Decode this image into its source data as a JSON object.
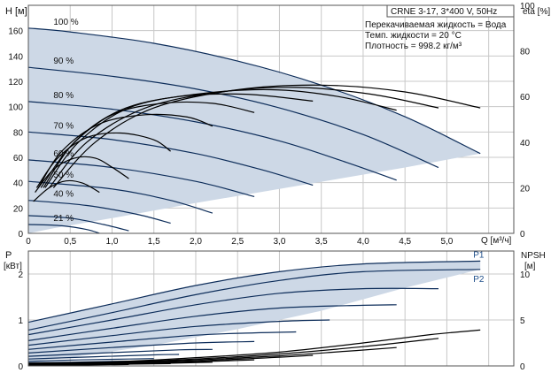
{
  "header": {
    "model": "CRNE 3-17, 3*400 V, 50Hz",
    "liquid": "Перекачиваемая жидкость = Вода",
    "temp": "Темп. жидкости = 20 °C",
    "density": "Плотность = 998.2 кг/м³"
  },
  "colors": {
    "region": "#cdd8e6",
    "curve": "#0d2d5a",
    "eta": "#000000",
    "grid": "#c8c8c8"
  },
  "chart_data": [
    {
      "type": "line",
      "title": "",
      "xlabel": "Q [м³/ч]",
      "ylabel": "H [м]",
      "y2label": "eta [%]",
      "x_ticks": [
        "0",
        "0,5",
        "1,0",
        "1,5",
        "2,0",
        "2,5",
        "3,0",
        "3,5",
        "4,0",
        "4,5",
        "5,0"
      ],
      "y_ticks": [
        "0",
        "20",
        "40",
        "60",
        "80",
        "100",
        "120",
        "140",
        "160"
      ],
      "y2_ticks": [
        "0",
        "20",
        "40",
        "60",
        "80",
        "100"
      ],
      "xlim": [
        0,
        5.8
      ],
      "ylim": [
        0,
        180
      ],
      "y2lim": [
        0,
        100
      ],
      "grid": true,
      "region": [
        [
          0,
          162
        ],
        [
          0.5,
          159
        ],
        [
          1.5,
          150
        ],
        [
          2.5,
          136
        ],
        [
          3.5,
          117
        ],
        [
          4.5,
          92
        ],
        [
          5.4,
          63
        ],
        [
          4.5,
          52
        ],
        [
          3.0,
          35
        ],
        [
          2.0,
          24
        ],
        [
          1.0,
          12
        ],
        [
          0.3,
          4
        ],
        [
          0,
          0
        ]
      ],
      "speed_curves": [
        {
          "label": "100 %",
          "points": [
            [
              0,
              162
            ],
            [
              0.5,
              159
            ],
            [
              1.5,
              150
            ],
            [
              2.5,
              136
            ],
            [
              3.5,
              117
            ],
            [
              4.5,
              92
            ],
            [
              5.4,
              63
            ]
          ]
        },
        {
          "label": "90 %",
          "points": [
            [
              0,
              131
            ],
            [
              1,
              124
            ],
            [
              2,
              114
            ],
            [
              3,
              99
            ],
            [
              4,
              78
            ],
            [
              4.9,
              52
            ]
          ]
        },
        {
          "label": "80 %",
          "points": [
            [
              0,
              104
            ],
            [
              1,
              98
            ],
            [
              2,
              88
            ],
            [
              3,
              73
            ],
            [
              3.8,
              56
            ],
            [
              4.4,
              42
            ]
          ]
        },
        {
          "label": "70 %",
          "points": [
            [
              0,
              80
            ],
            [
              1,
              74
            ],
            [
              2,
              63
            ],
            [
              2.8,
              50
            ],
            [
              3.4,
              38
            ]
          ]
        },
        {
          "label": "60 %",
          "points": [
            [
              0,
              58
            ],
            [
              1,
              52
            ],
            [
              2,
              41
            ],
            [
              2.7,
              29
            ]
          ]
        },
        {
          "label": "50 %",
          "points": [
            [
              0,
              41
            ],
            [
              1,
              35
            ],
            [
              1.7,
              26
            ],
            [
              2.2,
              16
            ]
          ]
        },
        {
          "label": "40 %",
          "points": [
            [
              0,
              26
            ],
            [
              0.7,
              22
            ],
            [
              1.3,
              15
            ],
            [
              1.7,
              8
            ]
          ]
        },
        {
          "label": "",
          "points": [
            [
              0,
              14
            ],
            [
              0.5,
              12
            ],
            [
              0.9,
              7
            ],
            [
              1.2,
              2
            ]
          ]
        },
        {
          "label": "21 %",
          "points": [
            [
              0,
              7
            ],
            [
              0.4,
              6
            ],
            [
              0.7,
              3
            ],
            [
              0.85,
              0
            ]
          ]
        }
      ],
      "eta_curves": [
        {
          "name": "",
          "points": [
            [
              0.3,
              20
            ],
            [
              0.8,
              40
            ],
            [
              1.5,
              55
            ],
            [
              2.5,
              63
            ],
            [
              3.5,
              65
            ],
            [
              4.5,
              62
            ],
            [
              5.4,
              55
            ]
          ]
        },
        {
          "name": "",
          "points": [
            [
              0.25,
              20
            ],
            [
              0.7,
              40
            ],
            [
              1.4,
              55
            ],
            [
              2.3,
              62
            ],
            [
              3.2,
              64
            ],
            [
              4.1,
              61
            ],
            [
              4.9,
              55
            ]
          ]
        },
        {
          "name": "",
          "points": [
            [
              0.2,
              20
            ],
            [
              0.6,
              40
            ],
            [
              1.2,
              55
            ],
            [
              2.0,
              61
            ],
            [
              2.9,
              63
            ],
            [
              3.7,
              60
            ],
            [
              4.4,
              54
            ]
          ]
        },
        {
          "name": "",
          "points": [
            [
              0.18,
              20
            ],
            [
              0.55,
              40
            ],
            [
              1.1,
              54
            ],
            [
              1.8,
              60
            ],
            [
              2.6,
              61
            ],
            [
              3.4,
              58
            ]
          ]
        },
        {
          "name": "",
          "points": [
            [
              0.15,
              20
            ],
            [
              0.5,
              38
            ],
            [
              1.0,
              52
            ],
            [
              1.6,
              57
            ],
            [
              2.2,
              57
            ],
            [
              2.7,
              53
            ]
          ]
        },
        {
          "name": "",
          "points": [
            [
              0.12,
              20
            ],
            [
              0.4,
              36
            ],
            [
              0.85,
              48
            ],
            [
              1.4,
              52
            ],
            [
              1.9,
              51
            ],
            [
              2.2,
              47
            ]
          ]
        },
        {
          "name": "",
          "points": [
            [
              0.1,
              20
            ],
            [
              0.35,
              33
            ],
            [
              0.7,
              42
            ],
            [
              1.1,
              44
            ],
            [
              1.5,
              41
            ],
            [
              1.7,
              36
            ]
          ]
        },
        {
          "name": "",
          "points": [
            [
              0.08,
              18
            ],
            [
              0.3,
              28
            ],
            [
              0.55,
              33
            ],
            [
              0.8,
              33
            ],
            [
              1.0,
              29
            ],
            [
              1.2,
              24
            ]
          ]
        },
        {
          "name": "",
          "points": [
            [
              0.06,
              14
            ],
            [
              0.25,
              20
            ],
            [
              0.45,
              23
            ],
            [
              0.65,
              22
            ],
            [
              0.85,
              18
            ]
          ]
        }
      ]
    },
    {
      "type": "line",
      "title": "",
      "ylabel": "P [кВт]",
      "y2label": "NPSH [м]",
      "y_ticks": [
        "0",
        "1",
        "2"
      ],
      "y2_ticks": [
        "0",
        "5",
        "10"
      ],
      "xlim": [
        0,
        5.8
      ],
      "ylim": [
        0,
        2.5
      ],
      "y2lim": [
        0,
        12.5
      ],
      "grid": true,
      "series_labels": [
        "P1",
        "P2"
      ],
      "region": [
        [
          0,
          0.95
        ],
        [
          1,
          1.35
        ],
        [
          2,
          1.75
        ],
        [
          3,
          2.05
        ],
        [
          4,
          2.22
        ],
        [
          5.4,
          2.28
        ],
        [
          5.4,
          2.1
        ],
        [
          4.5,
          1.7
        ],
        [
          3.5,
          1.2
        ],
        [
          2.5,
          0.8
        ],
        [
          1.5,
          0.45
        ],
        [
          0.5,
          0.18
        ],
        [
          0,
          0.1
        ]
      ],
      "power_curves": [
        {
          "name": "P1",
          "points": [
            [
              0,
              0.95
            ],
            [
              1,
              1.35
            ],
            [
              2,
              1.75
            ],
            [
              3,
              2.05
            ],
            [
              4,
              2.22
            ],
            [
              5.4,
              2.28
            ]
          ]
        },
        {
          "name": "P2",
          "points": [
            [
              0,
              0.78
            ],
            [
              1,
              1.16
            ],
            [
              2,
              1.55
            ],
            [
              3,
              1.86
            ],
            [
              4,
              2.05
            ],
            [
              5.4,
              2.1
            ]
          ]
        },
        {
          "name": "",
          "points": [
            [
              0,
              0.68
            ],
            [
              1,
              1.0
            ],
            [
              2,
              1.33
            ],
            [
              3,
              1.58
            ],
            [
              4,
              1.68
            ],
            [
              4.9,
              1.68
            ]
          ]
        },
        {
          "name": "",
          "points": [
            [
              0,
              0.55
            ],
            [
              1,
              0.82
            ],
            [
              2,
              1.08
            ],
            [
              3,
              1.26
            ],
            [
              4,
              1.32
            ],
            [
              4.4,
              1.33
            ]
          ]
        },
        {
          "name": "",
          "points": [
            [
              0,
              0.45
            ],
            [
              1,
              0.66
            ],
            [
              2,
              0.86
            ],
            [
              3,
              0.97
            ],
            [
              3.6,
              1.0
            ]
          ]
        },
        {
          "name": "",
          "points": [
            [
              0,
              0.36
            ],
            [
              1,
              0.52
            ],
            [
              2,
              0.67
            ],
            [
              2.7,
              0.72
            ],
            [
              3.2,
              0.74
            ]
          ]
        },
        {
          "name": "",
          "points": [
            [
              0,
              0.28
            ],
            [
              1,
              0.4
            ],
            [
              2,
              0.5
            ],
            [
              2.7,
              0.53
            ]
          ]
        },
        {
          "name": "",
          "points": [
            [
              0,
              0.21
            ],
            [
              1,
              0.29
            ],
            [
              1.8,
              0.35
            ],
            [
              2.2,
              0.36
            ]
          ]
        },
        {
          "name": "",
          "points": [
            [
              0,
              0.15
            ],
            [
              0.8,
              0.2
            ],
            [
              1.5,
              0.24
            ],
            [
              1.8,
              0.25
            ]
          ]
        },
        {
          "name": "",
          "points": [
            [
              0,
              0.1
            ],
            [
              0.6,
              0.13
            ],
            [
              1.2,
              0.15
            ],
            [
              1.5,
              0.16
            ]
          ]
        },
        {
          "name": "",
          "points": [
            [
              0,
              0.07
            ],
            [
              0.5,
              0.08
            ],
            [
              1.0,
              0.1
            ],
            [
              1.2,
              0.1
            ]
          ]
        }
      ],
      "npsh_curves": [
        {
          "name": "",
          "points": [
            [
              0,
              0.3
            ],
            [
              1,
              0.45
            ],
            [
              2,
              0.9
            ],
            [
              3,
              1.5
            ],
            [
              4,
              2.5
            ],
            [
              4.8,
              3.4
            ],
            [
              5.4,
              3.9
            ]
          ]
        },
        {
          "name": "",
          "points": [
            [
              0,
              0.25
            ],
            [
              1,
              0.4
            ],
            [
              2,
              0.75
            ],
            [
              3,
              1.3
            ],
            [
              4,
              2.1
            ],
            [
              4.9,
              3.0
            ]
          ]
        },
        {
          "name": "",
          "points": [
            [
              0,
              0.2
            ],
            [
              1,
              0.35
            ],
            [
              2,
              0.65
            ],
            [
              3,
              1.1
            ],
            [
              3.8,
              1.6
            ],
            [
              4.4,
              2.0
            ]
          ]
        },
        {
          "name": "",
          "points": [
            [
              0,
              0.15
            ],
            [
              1,
              0.3
            ],
            [
              2,
              0.55
            ],
            [
              3,
              0.95
            ],
            [
              3.4,
              1.15
            ]
          ]
        },
        {
          "name": "",
          "points": [
            [
              0,
              0.12
            ],
            [
              1,
              0.25
            ],
            [
              2,
              0.45
            ],
            [
              2.7,
              0.65
            ]
          ]
        },
        {
          "name": "",
          "points": [
            [
              0,
              0.1
            ],
            [
              1,
              0.2
            ],
            [
              1.7,
              0.3
            ],
            [
              2.2,
              0.4
            ]
          ]
        },
        {
          "name": "",
          "points": [
            [
              0,
              0.08
            ],
            [
              0.8,
              0.15
            ],
            [
              1.7,
              0.25
            ]
          ]
        },
        {
          "name": "",
          "points": [
            [
              0,
              0.06
            ],
            [
              0.6,
              0.1
            ],
            [
              1.2,
              0.15
            ]
          ]
        }
      ]
    }
  ]
}
